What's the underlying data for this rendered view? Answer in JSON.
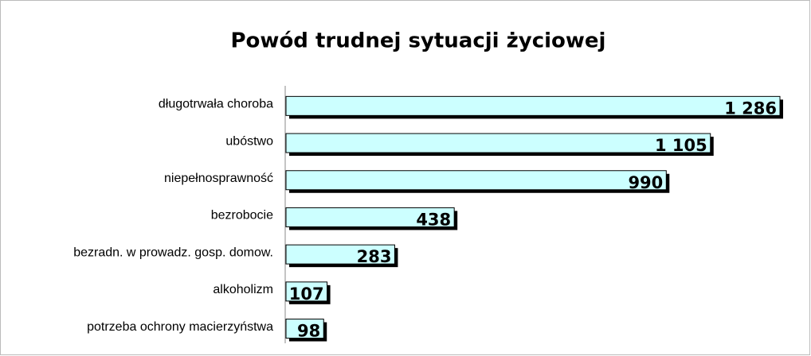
{
  "chart_data": {
    "type": "bar",
    "orientation": "horizontal",
    "title": "Powód trudnej sytuacji życiowej",
    "categories": [
      "długotrwała choroba",
      "ubóstwo",
      "niepełnosprawność",
      "bezrobocie",
      "bezradn. w prowadz. gosp. domow.",
      "alkoholizm",
      "potrzeba ochrony macierzyństwa"
    ],
    "values": [
      1286,
      1105,
      990,
      438,
      283,
      107,
      98
    ],
    "value_labels": [
      "1 286",
      "1 105",
      "990",
      "438",
      "283",
      "107",
      "98"
    ],
    "color": "#ccffff"
  }
}
